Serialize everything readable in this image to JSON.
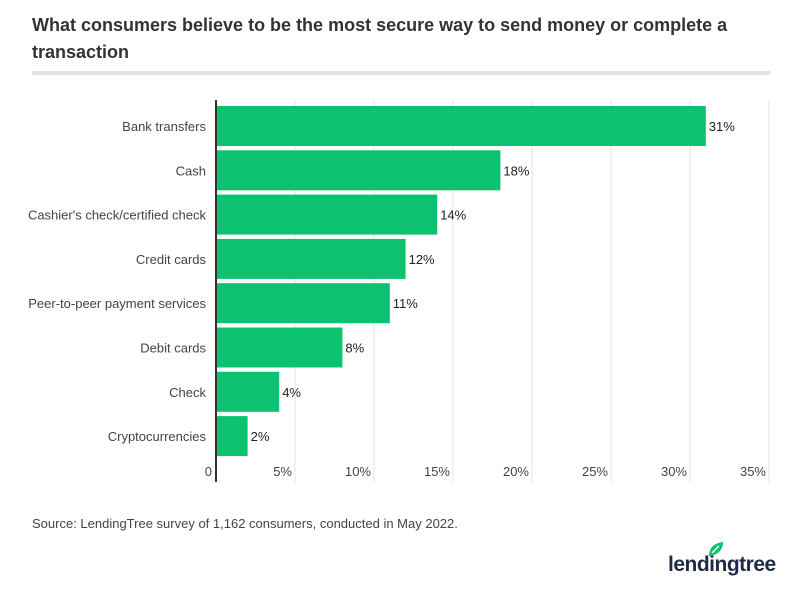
{
  "title": "What consumers believe to be the most secure way to send money or complete a transaction",
  "source": "Source: LendingTree survey of 1,162 consumers, conducted in May 2022.",
  "logo": "lendingtree",
  "colors": {
    "bar": "#0cc170",
    "grid": "#e6e6e6",
    "axis": "#333333",
    "logo_leaf": "#0cc170"
  },
  "chart_data": {
    "type": "bar",
    "orientation": "horizontal",
    "categories": [
      "Bank transfers",
      "Cash",
      "Cashier's check/certified check",
      "Credit cards",
      "Peer-to-peer payment services",
      "Debit cards",
      "Check",
      "Cryptocurrencies"
    ],
    "values": [
      31,
      18,
      14,
      12,
      11,
      8,
      4,
      2
    ],
    "data_labels": [
      "31%",
      "18%",
      "14%",
      "12%",
      "11%",
      "8%",
      "4%",
      "2%"
    ],
    "xlim": [
      0,
      35
    ],
    "x_ticks": [
      0,
      5,
      10,
      15,
      20,
      25,
      30,
      35
    ],
    "x_tick_labels": [
      "0",
      "5%",
      "10%",
      "15%",
      "20%",
      "25%",
      "30%",
      "35%"
    ],
    "grid": "vertical",
    "title": "What consumers believe to be the most secure way to send money or complete a transaction"
  }
}
